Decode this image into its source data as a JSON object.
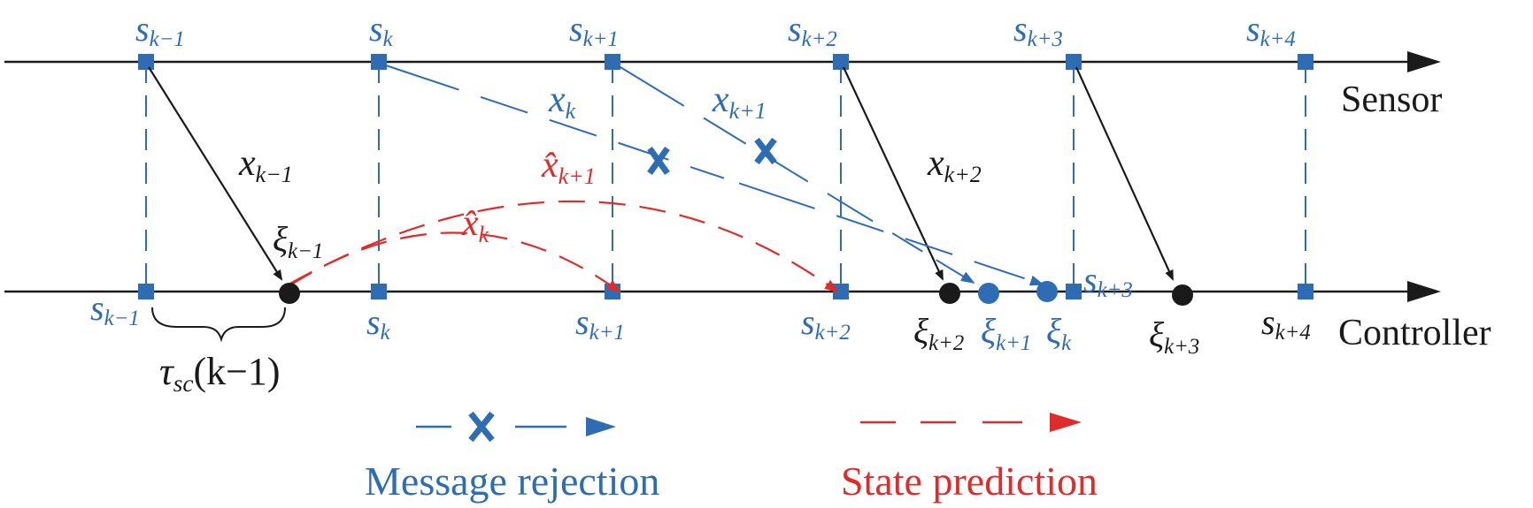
{
  "lines": {
    "sensor_label": "Sensor",
    "controller_label": "Controller"
  },
  "sensor_ticks": [
    {
      "base": "s",
      "sub": "k−1"
    },
    {
      "base": "s",
      "sub": "k"
    },
    {
      "base": "s",
      "sub": "k+1"
    },
    {
      "base": "s",
      "sub": "k+2"
    },
    {
      "base": "s",
      "sub": "k+3"
    },
    {
      "base": "s",
      "sub": "k+4"
    }
  ],
  "controller_ticks": [
    {
      "base": "s",
      "sub": "k−1"
    },
    {
      "base": "s",
      "sub": "k"
    },
    {
      "base": "s",
      "sub": "k+1"
    },
    {
      "base": "s",
      "sub": "k+2"
    },
    {
      "base": "s",
      "sub": "k+3"
    },
    {
      "base": "s",
      "sub": "k+4"
    }
  ],
  "messages": {
    "x_k_minus_1": {
      "base": "x",
      "sub": "k−1"
    },
    "x_k": {
      "base": "x",
      "sub": "k"
    },
    "x_k_plus_1": {
      "base": "x",
      "sub": "k+1"
    },
    "x_k_plus_2": {
      "base": "x",
      "sub": "k+2"
    }
  },
  "predictions": {
    "xhat_k": {
      "base": "x̂",
      "sub": "k"
    },
    "xhat_k_plus_1": {
      "base": "x̂",
      "sub": "k+1"
    }
  },
  "arrivals": {
    "xi_k_minus_1": {
      "base": "ξ",
      "sub": "k−1"
    },
    "xi_k_plus_2": {
      "base": "ξ",
      "sub": "k+2"
    },
    "xi_k_plus_1": {
      "base": "ξ",
      "sub": "k+1"
    },
    "xi_k": {
      "base": "ξ",
      "sub": "k"
    },
    "xi_k_plus_3": {
      "base": "ξ",
      "sub": "k+3"
    }
  },
  "delay": {
    "base": "τ",
    "sub": "sc",
    "suffix": "(k−1)"
  },
  "legend": {
    "rejection_label": "Message rejection",
    "prediction_label": "State prediction"
  },
  "colors": {
    "blue": "#2e6db4",
    "red": "#e02b2b",
    "black": "#1a1a1a"
  }
}
